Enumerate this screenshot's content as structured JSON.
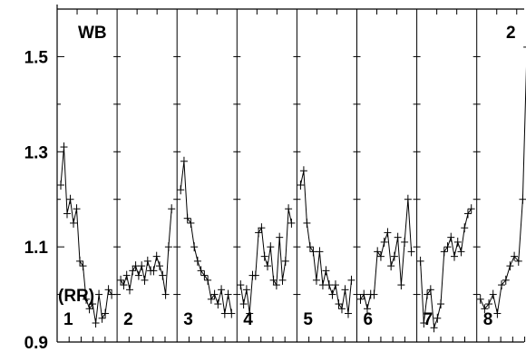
{
  "chart_data": {
    "type": "line",
    "title": "",
    "corner_label_left": "WB",
    "corner_label_right": "2",
    "series_label": "(RR)",
    "xlabel": "",
    "ylabel": "",
    "ylim": [
      0.9,
      1.6
    ],
    "y_ticks": [
      "0.9",
      "1.1",
      "1.3",
      "1.5"
    ],
    "grid": false,
    "panels": [
      {
        "label": "1",
        "values": [
          1.23,
          1.31,
          1.17,
          1.2,
          1.15,
          1.18,
          1.07,
          1.06,
          0.99,
          0.97,
          0.98,
          0.94,
          1.0,
          0.95,
          0.96,
          1.01,
          1.0
        ]
      },
      {
        "label": "2",
        "values": [
          1.03,
          1.02,
          1.04,
          1.01,
          1.05,
          1.06,
          1.04,
          1.06,
          1.03,
          1.07,
          1.05,
          1.05,
          1.08,
          1.06,
          1.04,
          1.0,
          1.1,
          1.18
        ]
      },
      {
        "label": "3",
        "values": [
          1.22,
          1.28,
          1.16,
          1.15,
          1.1,
          1.07,
          1.05,
          1.04,
          1.03,
          0.99,
          1.0,
          0.98,
          1.01,
          0.96,
          1.0,
          0.96
        ]
      },
      {
        "label": "4",
        "values": [
          1.02,
          0.98,
          1.01,
          0.96,
          1.04,
          1.04,
          1.13,
          1.14,
          1.08,
          1.06,
          1.1,
          1.03,
          1.02,
          1.12,
          1.03,
          1.07,
          1.18,
          1.15
        ]
      },
      {
        "label": "5",
        "values": [
          1.23,
          1.26,
          1.15,
          1.1,
          1.09,
          1.03,
          1.09,
          1.02,
          1.05,
          1.02,
          1.0,
          1.02,
          0.98,
          0.97,
          1.01,
          0.96,
          1.03
        ]
      },
      {
        "label": "6",
        "values": [
          0.99,
          1.0,
          0.97,
          1.0,
          1.0,
          1.09,
          1.08,
          1.11,
          1.13,
          1.06,
          1.08,
          1.12,
          1.02,
          1.11,
          1.2,
          1.09
        ]
      },
      {
        "label": "7",
        "values": [
          1.07,
          0.94,
          1.0,
          1.01,
          0.93,
          0.95,
          0.98,
          1.09,
          1.1,
          1.12,
          1.08,
          1.11,
          1.09,
          1.14,
          1.17,
          1.18
        ]
      },
      {
        "label": "8",
        "values": [
          0.99,
          0.97,
          0.98,
          1.0,
          0.96,
          1.02,
          1.03,
          1.06,
          1.08,
          1.07,
          1.2,
          1.52,
          1.33
        ]
      }
    ]
  }
}
